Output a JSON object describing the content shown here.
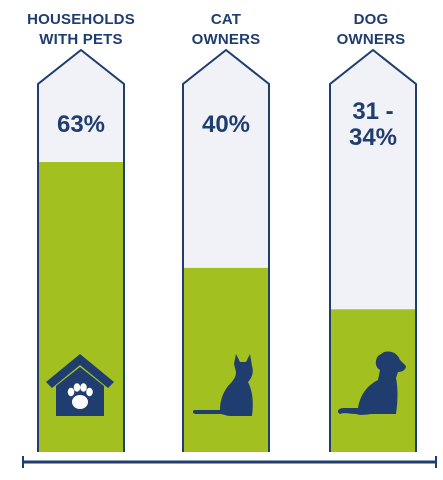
{
  "colors": {
    "navy": "#1f3d6e",
    "fill": "#a2c01f",
    "empty": "#f1f2f7",
    "background": "#ffffff"
  },
  "columns": [
    {
      "title_lines": [
        "HOUSEHOLDS",
        "WITH PETS"
      ],
      "value_label": "63%",
      "icon": "dog-house-paw-icon"
    },
    {
      "title_lines": [
        "CAT",
        "OWNERS"
      ],
      "value_label": "40%",
      "icon": "sitting-cat-icon"
    },
    {
      "title_lines": [
        "DOG",
        "OWNERS"
      ],
      "value_label": "31 -\n34%",
      "icon": "sitting-dog-icon"
    }
  ],
  "chart_data": {
    "type": "bar",
    "categories": [
      "HOUSEHOLDS WITH PETS",
      "CAT OWNERS",
      "DOG OWNERS"
    ],
    "values": [
      63,
      40,
      31
    ],
    "value_labels": [
      "63%",
      "40%",
      "31 - 34%"
    ],
    "ylim": [
      0,
      100
    ],
    "grid": false,
    "legend": "none"
  }
}
